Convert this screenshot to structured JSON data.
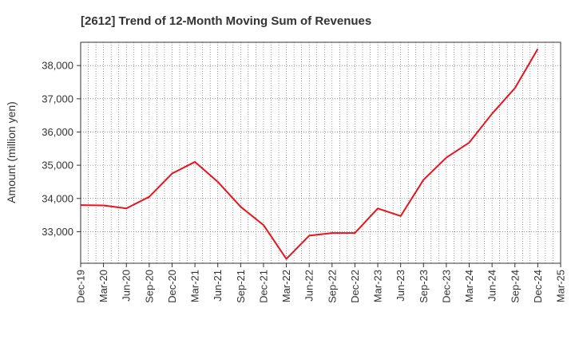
{
  "chart_data": {
    "type": "line",
    "title": "[2612]  Trend of 12-Month Moving Sum of Revenues",
    "xlabel": "",
    "ylabel": "Amount (million yen)",
    "ylim": [
      32050,
      38700
    ],
    "yticks": [
      33000,
      34000,
      35000,
      36000,
      37000,
      38000
    ],
    "ytick_labels": [
      "33,000",
      "34,000",
      "35,000",
      "36,000",
      "37,000",
      "38,000"
    ],
    "xtick_labels": [
      "Dec-19",
      "Mar-20",
      "Jun-20",
      "Sep-20",
      "Dec-20",
      "Mar-21",
      "Jun-21",
      "Sep-21",
      "Dec-21",
      "Mar-22",
      "Jun-22",
      "Sep-22",
      "Dec-22",
      "Mar-23",
      "Jun-23",
      "Sep-23",
      "Dec-23",
      "Mar-24",
      "Jun-24",
      "Sep-24",
      "Dec-24",
      "Mar-25"
    ],
    "grid": true,
    "series": [
      {
        "color": "#e8141b",
        "x": [
          "Dec-19",
          "Mar-20",
          "Jun-20",
          "Sep-20",
          "Dec-20",
          "Mar-21",
          "Jun-21",
          "Sep-21",
          "Dec-21",
          "Mar-22",
          "Jun-22",
          "Sep-22",
          "Dec-22",
          "Mar-23",
          "Jun-23",
          "Sep-23",
          "Dec-23",
          "Mar-24",
          "Jun-24",
          "Sep-24",
          "Dec-24"
        ],
        "values": [
          33800,
          33790,
          33700,
          34050,
          34750,
          35100,
          34500,
          33750,
          33200,
          32180,
          32880,
          32960,
          32960,
          33700,
          33470,
          34560,
          35230,
          35680,
          36550,
          37320,
          38500
        ]
      }
    ]
  }
}
